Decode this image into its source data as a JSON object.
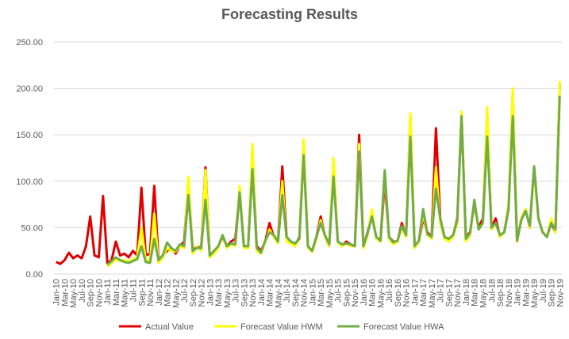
{
  "chart_data": {
    "type": "line",
    "title": "Forecasting Results",
    "categories": [
      "Jan-10",
      null,
      "Mar-10",
      null,
      "May-10",
      null,
      "Jul-10",
      null,
      "Sep-10",
      null,
      "Nov-10",
      null,
      "Jan-11",
      null,
      "Mar-11",
      null,
      "May-11",
      null,
      "Jul-11",
      null,
      "Sep-11",
      null,
      "Nov-11",
      null,
      "Jan-12",
      null,
      "Mar-12",
      null,
      "May-12",
      null,
      "Jul-12",
      null,
      "Sep-12",
      null,
      "Nov-12",
      null,
      "Jan-13",
      null,
      "Mar-13",
      null,
      "May-13",
      null,
      "Jul-13",
      null,
      "Sep-13",
      null,
      "Nov-13",
      null,
      "Jan-14",
      null,
      "Mar-14",
      null,
      "May-14",
      null,
      "Jul-14",
      null,
      "Sep-14",
      null,
      "Nov-14",
      null,
      "Jan-15",
      null,
      "Mar-15",
      null,
      "May-15",
      null,
      "Jul-15",
      null,
      "Sep-15",
      null,
      "Nov-15",
      null,
      "Jan-16",
      null,
      "Mar-16",
      null,
      "May-16",
      null,
      "Jul-16",
      null,
      "Sep-16",
      null,
      "Nov-16",
      null,
      "Jan-17",
      null,
      "Mar-17",
      null,
      "May-17",
      null,
      "Jul-17",
      null,
      "Sep-17",
      null,
      "Nov-17",
      null,
      "Jan-18",
      null,
      "Mar-18",
      null,
      "May-18",
      null,
      "Jul-18",
      null,
      "Sep-18",
      null,
      "Nov-18",
      null,
      "Jan-19",
      null,
      "Mar-19",
      null,
      "May-19",
      null,
      "Jul-19",
      null,
      "Sep-19",
      null,
      "Nov-19"
    ],
    "series": [
      {
        "name": "Actual Value",
        "color": "#e00000",
        "values": [
          13,
          11,
          15,
          23,
          17,
          20,
          17,
          30,
          62,
          20,
          18,
          84,
          12,
          15,
          35,
          20,
          22,
          18,
          25,
          20,
          93,
          20,
          22,
          95,
          15,
          20,
          25,
          28,
          22,
          30,
          35,
          100,
          25,
          30,
          28,
          115,
          20,
          22,
          30,
          40,
          30,
          35,
          38,
          90,
          30,
          30,
          135,
          30,
          25,
          35,
          55,
          40,
          35,
          116,
          40,
          35,
          30,
          40,
          140,
          30,
          25,
          40,
          62,
          40,
          30,
          120,
          35,
          30,
          35,
          32,
          30,
          150,
          30,
          45,
          65,
          40,
          35,
          100,
          40,
          35,
          35,
          55,
          40,
          170,
          30,
          35,
          60,
          45,
          40,
          157,
          60,
          40,
          35,
          40,
          60,
          172,
          40,
          45,
          75,
          50,
          60,
          175,
          50,
          60,
          40,
          45,
          70,
          195,
          35,
          60,
          70,
          50,
          115,
          60,
          45,
          40,
          55,
          45,
          205
        ]
      },
      {
        "name": "Forecast Value HWM",
        "color": "#ffff00",
        "values": [
          null,
          null,
          null,
          null,
          null,
          null,
          null,
          null,
          null,
          null,
          null,
          null,
          8,
          12,
          16,
          14,
          15,
          13,
          16,
          18,
          50,
          15,
          14,
          65,
          12,
          18,
          28,
          25,
          24,
          30,
          28,
          105,
          22,
          30,
          25,
          112,
          18,
          22,
          28,
          42,
          28,
          32,
          30,
          95,
          28,
          28,
          140,
          25,
          22,
          34,
          48,
          40,
          33,
          100,
          35,
          33,
          30,
          38,
          145,
          28,
          24,
          38,
          58,
          40,
          30,
          125,
          34,
          30,
          33,
          30,
          30,
          140,
          28,
          42,
          70,
          38,
          35,
          110,
          38,
          32,
          35,
          50,
          40,
          173,
          28,
          35,
          65,
          42,
          38,
          115,
          55,
          38,
          35,
          40,
          55,
          175,
          35,
          42,
          78,
          48,
          55,
          180,
          48,
          55,
          40,
          45,
          75,
          200,
          35,
          60,
          70,
          50,
          110,
          60,
          45,
          40,
          60,
          45,
          208
        ]
      },
      {
        "name": "Forecast Value HWA",
        "color": "#70ad47",
        "values": [
          null,
          null,
          null,
          null,
          null,
          null,
          null,
          null,
          null,
          null,
          null,
          null,
          10,
          14,
          18,
          15,
          13,
          12,
          14,
          16,
          30,
          13,
          12,
          38,
          15,
          20,
          34,
          28,
          25,
          32,
          30,
          85,
          25,
          28,
          28,
          80,
          20,
          25,
          30,
          42,
          30,
          33,
          32,
          88,
          30,
          30,
          113,
          28,
          23,
          36,
          45,
          42,
          35,
          85,
          40,
          35,
          33,
          38,
          128,
          30,
          25,
          40,
          55,
          42,
          32,
          105,
          35,
          32,
          33,
          32,
          30,
          132,
          30,
          44,
          62,
          40,
          36,
          112,
          40,
          34,
          36,
          52,
          42,
          148,
          30,
          36,
          70,
          43,
          40,
          92,
          60,
          40,
          38,
          42,
          58,
          170,
          38,
          44,
          80,
          48,
          55,
          148,
          50,
          55,
          42,
          45,
          70,
          170,
          36,
          58,
          68,
          52,
          116,
          60,
          45,
          40,
          55,
          48,
          192
        ]
      }
    ],
    "ylim": [
      0,
      250
    ],
    "yticks": [
      {
        "value": 0,
        "label": "0.00"
      },
      {
        "value": 50,
        "label": "50.00"
      },
      {
        "value": 100,
        "label": "100.00"
      },
      {
        "value": 150,
        "label": "150.00"
      },
      {
        "value": 200,
        "label": "200.00"
      },
      {
        "value": 250,
        "label": "250.00"
      }
    ],
    "grid": true,
    "legend": "bottom"
  }
}
